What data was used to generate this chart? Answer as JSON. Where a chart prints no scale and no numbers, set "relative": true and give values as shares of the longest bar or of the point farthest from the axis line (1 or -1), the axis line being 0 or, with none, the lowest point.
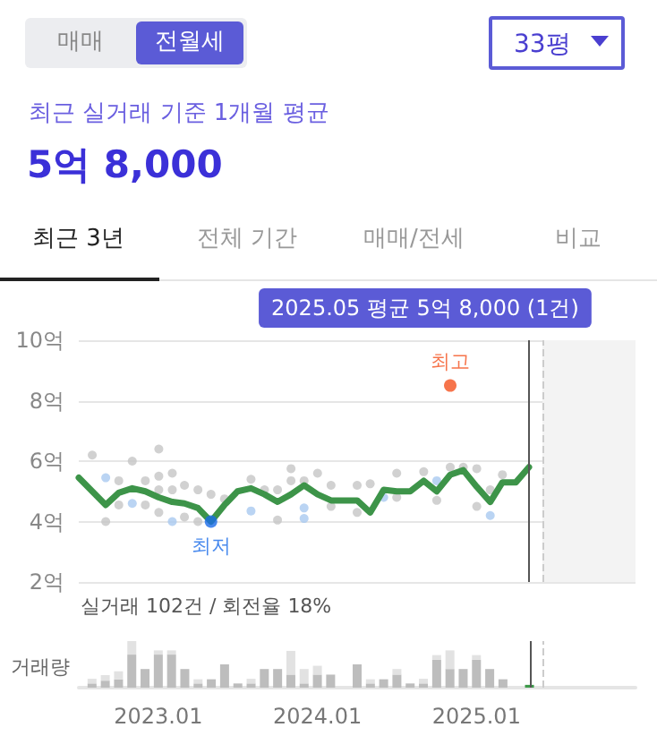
{
  "chart_data": [
    {
      "type": "line",
      "title": "5억 8,000",
      "subtitle": "최근 실거래 기준 1개월 평균",
      "annotations": [
        "매매",
        "전월세",
        "33평",
        "최근 3년",
        "전체 기간",
        "매매/전세",
        "비교",
        {
          "text": "최고",
          "x": "2024-11",
          "y": 8.5
        },
        {
          "text": "최저",
          "x": "2023-05",
          "y": 4.0
        }
      ],
      "xlim": [
        "2022-07",
        "2026-01"
      ],
      "ylim": [
        2,
        10
      ],
      "yticks": [
        {
          "value": 2,
          "label": "2억"
        },
        {
          "value": 4,
          "label": "4억"
        },
        {
          "value": 6,
          "label": "6억"
        },
        {
          "value": 8,
          "label": "8억"
        },
        {
          "value": 10,
          "label": "10억"
        }
      ],
      "tick_labels": "y",
      "grid": "y",
      "series": [
        {
          "type": "line",
          "color": "#3d9449",
          "marker": "none",
          "line_style": "solid",
          "x": [
            "2022-07",
            "2022-08",
            "2022-09",
            "2022-10",
            "2022-11",
            "2022-12",
            "2023-01",
            "2023-02",
            "2023-03",
            "2023-04",
            "2023-05",
            "2023-06",
            "2023-07",
            "2023-08",
            "2023-09",
            "2023-10",
            "2023-11",
            "2023-12",
            "2024-01",
            "2024-02",
            "2024-03",
            "2024-04",
            "2024-05",
            "2024-06",
            "2024-07",
            "2024-08",
            "2024-09",
            "2024-10",
            "2024-11",
            "2024-12",
            "2025-01",
            "2025-02",
            "2025-03",
            "2025-04",
            "2025-05"
          ],
          "values": [
            5.45,
            5.0,
            4.55,
            4.95,
            5.1,
            5.0,
            4.8,
            4.65,
            4.6,
            4.45,
            4.0,
            4.55,
            5.0,
            5.1,
            4.9,
            4.65,
            4.9,
            5.2,
            4.9,
            4.7,
            4.7,
            4.7,
            4.3,
            5.05,
            5.0,
            5.0,
            5.35,
            5.0,
            5.55,
            5.7,
            5.15,
            4.65,
            5.3,
            5.3,
            5.8
          ]
        },
        {
          "type": "scatter",
          "color": "#c6c6c6",
          "marker": "circle",
          "x": [
            "2022-08",
            "2022-09",
            "2022-10",
            "2022-10",
            "2022-11",
            "2022-12",
            "2022-12",
            "2023-01",
            "2023-01",
            "2023-01",
            "2023-01",
            "2023-02",
            "2023-02",
            "2023-03",
            "2023-03",
            "2023-04",
            "2023-04",
            "2023-05",
            "2023-06",
            "2023-08",
            "2023-09",
            "2023-10",
            "2023-10",
            "2023-11",
            "2023-11",
            "2023-12",
            "2024-01",
            "2024-02",
            "2024-02",
            "2024-04",
            "2024-04",
            "2024-05",
            "2024-07",
            "2024-07",
            "2024-09",
            "2024-10",
            "2024-11",
            "2024-12",
            "2025-01",
            "2025-01",
            "2025-02",
            "2025-03"
          ],
          "values": [
            6.2,
            4.0,
            5.35,
            4.55,
            6.0,
            5.35,
            4.55,
            6.4,
            5.5,
            5.05,
            4.3,
            5.6,
            5.05,
            5.2,
            4.15,
            5.05,
            4.0,
            4.9,
            4.75,
            5.4,
            5.05,
            5.05,
            4.05,
            5.75,
            5.35,
            5.35,
            5.6,
            4.5,
            5.2,
            5.2,
            4.3,
            5.25,
            5.6,
            4.8,
            5.65,
            4.7,
            5.8,
            5.8,
            5.75,
            4.5,
            5.05,
            5.55
          ]
        },
        {
          "type": "scatter",
          "color": "#a9c9f0",
          "marker": "circle",
          "x": [
            "2022-09",
            "2022-11",
            "2023-02",
            "2023-08",
            "2023-12",
            "2023-12",
            "2024-06",
            "2024-10",
            "2025-02"
          ],
          "values": [
            5.45,
            4.6,
            4.0,
            4.35,
            4.45,
            4.1,
            4.8,
            5.35,
            4.2
          ]
        },
        {
          "type": "scatter",
          "color": "#f4511e",
          "marker": "circle",
          "x": [
            "2024-11"
          ],
          "values": [
            8.5
          ]
        },
        {
          "type": "scatter",
          "color": "#1a6ce8",
          "marker": "circle",
          "x": [
            "2023-05"
          ],
          "values": [
            4.0
          ]
        }
      ],
      "ref_lines": [
        {
          "axis": "x",
          "value": "2025-05",
          "label": "2025.05 평균 5억 8,000 (1건)",
          "color": "#555555",
          "line_style": "solid"
        },
        {
          "axis": "x",
          "value": "2025-06",
          "color": "#cccccc",
          "line_style": "dashed"
        }
      ],
      "bands": [
        {
          "axis": "x",
          "from": "2025-06",
          "to": "2026-01",
          "color": "#f3f3f3"
        }
      ]
    },
    {
      "type": "bar",
      "stacked": true,
      "relative": true,
      "title": "실거래 102건 / 회전율 18%",
      "ylabel": "거래량",
      "x": [
        "2022-08",
        "2022-09",
        "2022-10",
        "2022-11",
        "2022-12",
        "2023-01",
        "2023-02",
        "2023-03",
        "2023-04",
        "2023-05",
        "2023-06",
        "2023-07",
        "2023-08",
        "2023-09",
        "2023-10",
        "2023-11",
        "2023-12",
        "2024-01",
        "2024-02",
        "2024-04",
        "2024-05",
        "2024-06",
        "2024-07",
        "2024-08",
        "2024-09",
        "2024-10",
        "2024-11",
        "2024-12",
        "2025-01",
        "2025-02",
        "2025-03",
        "2025-05"
      ],
      "xlim": [
        "2022-07",
        "2026-01"
      ],
      "xticks": [
        {
          "value": "2023-01",
          "label": "2023.01"
        },
        {
          "value": "2024-01",
          "label": "2024.01"
        },
        {
          "value": "2025-01",
          "label": "2025.01"
        }
      ],
      "tick_labels": "x",
      "series": [
        {
          "color": "#bdbdbd",
          "values": [
            0.09,
            0.15,
            0.18,
            0.71,
            0.4,
            0.71,
            0.71,
            0.4,
            0.09,
            0.18,
            0.5,
            0.09,
            0.09,
            0.4,
            0.4,
            0.28,
            0.09,
            0.28,
            0.28,
            0.5,
            0.09,
            0.18,
            0.28,
            0.09,
            0.09,
            0.6,
            0.4,
            0.4,
            0.6,
            0.4,
            0.18,
            null
          ]
        },
        {
          "color": "#e2e2e2",
          "values": [
            0.1,
            0.12,
            0.17,
            0.29,
            null,
            0.09,
            0.09,
            null,
            0.09,
            null,
            null,
            null,
            0.1,
            null,
            null,
            0.51,
            0.31,
            0.19,
            null,
            null,
            0.09,
            null,
            0.12,
            null,
            0.1,
            0.1,
            0.4,
            null,
            0.1,
            null,
            null,
            null
          ]
        },
        {
          "color": "#3d9a4a",
          "values": [
            null,
            null,
            null,
            null,
            null,
            null,
            null,
            null,
            null,
            null,
            null,
            null,
            null,
            null,
            null,
            null,
            null,
            null,
            null,
            null,
            null,
            null,
            null,
            null,
            null,
            null,
            null,
            null,
            null,
            null,
            null,
            0.06
          ]
        }
      ],
      "ref_lines": [
        {
          "axis": "x",
          "value": "2025-05",
          "color": "#555555",
          "line_style": "solid"
        },
        {
          "axis": "x",
          "value": "2025-06",
          "color": "#cccccc",
          "line_style": "dashed"
        }
      ]
    }
  ]
}
